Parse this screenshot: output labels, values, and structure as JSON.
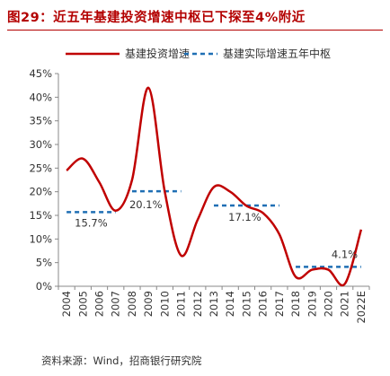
{
  "header": {
    "title": "图29：近五年基建投资增速中枢已下探至4%附近"
  },
  "footer": {
    "source": "资料来源：Wind，招商银行研究院"
  },
  "chart_data": {
    "type": "line",
    "categories": [
      "2004",
      "2005",
      "2006",
      "2007",
      "2008",
      "2009",
      "2010",
      "2011",
      "2012",
      "2013",
      "2014",
      "2015",
      "2016",
      "2017",
      "2018",
      "2019",
      "2020",
      "2021",
      "2022E"
    ],
    "ylim": [
      0,
      45
    ],
    "yticks": [
      0,
      5,
      10,
      15,
      20,
      25,
      30,
      35,
      40,
      45
    ],
    "ytick_labels": [
      "0%",
      "5%",
      "10%",
      "15%",
      "20%",
      "25%",
      "30%",
      "35%",
      "40%",
      "45%"
    ],
    "grid": false,
    "legend_position": "top",
    "series": [
      {
        "name": "基建投资增速",
        "style": "solid",
        "color": "#c00000",
        "values": [
          24.5,
          27.0,
          22.0,
          16.0,
          22.5,
          42.0,
          20.0,
          6.5,
          14.0,
          21.0,
          20.0,
          17.0,
          15.5,
          11.0,
          2.0,
          3.5,
          3.5,
          0.5,
          12.0
        ]
      },
      {
        "name": "基建实际增速五年中枢",
        "style": "dashed",
        "color": "#1f6fb4",
        "segments": [
          {
            "x_from": "2004",
            "x_to": "2007",
            "value": 15.7,
            "label": "15.7%"
          },
          {
            "x_from": "2008",
            "x_to": "2011",
            "value": 20.1,
            "label": "20.1%"
          },
          {
            "x_from": "2013",
            "x_to": "2017",
            "value": 17.1,
            "label": "17.1%"
          },
          {
            "x_from": "2018",
            "x_to": "2022E",
            "value": 4.1,
            "label": "4.1%"
          }
        ]
      }
    ]
  }
}
